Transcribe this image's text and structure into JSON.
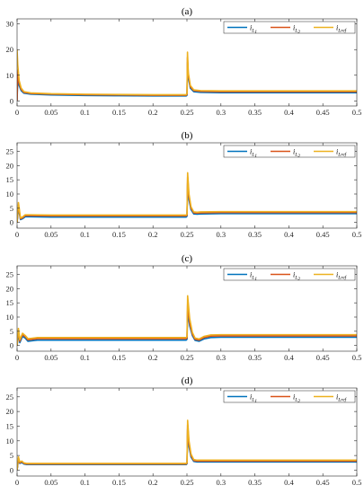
{
  "colors": {
    "i_L1": "#0072BD",
    "i_L2": "#D95319",
    "i_Lref": "#EDB120",
    "axes": "#262626",
    "background": "#ffffff"
  },
  "legend": {
    "placement": "top-right",
    "entries": [
      {
        "key": "i_L1",
        "base": "i",
        "sub": "L",
        "subsub": "1"
      },
      {
        "key": "i_L2",
        "base": "i",
        "sub": "L",
        "subsub": "2"
      },
      {
        "key": "i_Lref",
        "base": "i",
        "sub": "Lref",
        "subsub": ""
      }
    ]
  },
  "chart_data": [
    {
      "type": "line",
      "title": "(a)",
      "xlabel": "",
      "ylabel": "",
      "xlim": [
        0,
        0.5
      ],
      "ylim": [
        -2,
        32
      ],
      "xticks": [
        0,
        0.05,
        0.1,
        0.15,
        0.2,
        0.25,
        0.3,
        0.35,
        0.4,
        0.45,
        0.5
      ],
      "xtick_labels": [
        "0",
        "0.05",
        "0.1",
        "0.15",
        "0.2",
        "0.25",
        "0.3",
        "0.35",
        "0.4",
        "0.45",
        "0.5"
      ],
      "yticks": [
        0,
        10,
        20,
        30
      ],
      "ytick_labels": [
        "0",
        "10",
        "20",
        "30"
      ],
      "legend": "top-right",
      "series": [
        {
          "key": "i_L1",
          "x": [
            0,
            0.001,
            0.003,
            0.006,
            0.01,
            0.02,
            0.05,
            0.1,
            0.15,
            0.2,
            0.249,
            0.2501,
            0.2508,
            0.252,
            0.255,
            0.26,
            0.27,
            0.3,
            0.4,
            0.5
          ],
          "y": [
            0,
            9,
            6,
            4,
            3,
            2.6,
            2.3,
            2.1,
            2,
            1.9,
            1.9,
            2.2,
            15,
            9,
            5,
            3.6,
            3.3,
            3.2,
            3.2,
            3.2
          ]
        },
        {
          "key": "i_L2",
          "x": [
            0,
            0.001,
            0.003,
            0.006,
            0.01,
            0.02,
            0.05,
            0.1,
            0.15,
            0.2,
            0.249,
            0.2501,
            0.2508,
            0.252,
            0.255,
            0.26,
            0.27,
            0.3,
            0.4,
            0.5
          ],
          "y": [
            0,
            12,
            7,
            4.5,
            3.3,
            2.9,
            2.6,
            2.4,
            2.3,
            2.2,
            2.2,
            2.6,
            17,
            10,
            5.5,
            4,
            3.7,
            3.6,
            3.6,
            3.6
          ]
        },
        {
          "key": "i_Lref",
          "x": [
            0,
            0.001,
            0.003,
            0.006,
            0.01,
            0.02,
            0.05,
            0.1,
            0.15,
            0.2,
            0.249,
            0.2501,
            0.2508,
            0.252,
            0.255,
            0.26,
            0.27,
            0.3,
            0.4,
            0.5
          ],
          "y": [
            20,
            14,
            8,
            5,
            3.6,
            3.1,
            2.8,
            2.6,
            2.5,
            2.4,
            2.4,
            2.9,
            19,
            11,
            6,
            4.3,
            4,
            3.9,
            3.9,
            3.9
          ]
        }
      ]
    },
    {
      "type": "line",
      "title": "(b)",
      "xlabel": "",
      "ylabel": "",
      "xlim": [
        0,
        0.5
      ],
      "ylim": [
        -2,
        28
      ],
      "xticks": [
        0,
        0.05,
        0.1,
        0.15,
        0.2,
        0.25,
        0.3,
        0.35,
        0.4,
        0.45,
        0.5
      ],
      "xtick_labels": [
        "0",
        "0.05",
        "0.1",
        "0.15",
        "0.2",
        "0.25",
        "0.3",
        "0.35",
        "0.4",
        "0.45",
        "0.5"
      ],
      "yticks": [
        0,
        5,
        10,
        15,
        20,
        25
      ],
      "ytick_labels": [
        "0",
        "5",
        "10",
        "15",
        "20",
        "25"
      ],
      "legend": "top-right",
      "series": [
        {
          "key": "i_L1",
          "x": [
            0,
            0.002,
            0.005,
            0.008,
            0.012,
            0.02,
            0.05,
            0.1,
            0.2,
            0.249,
            0.2501,
            0.251,
            0.253,
            0.256,
            0.26,
            0.265,
            0.27,
            0.3,
            0.4,
            0.5
          ],
          "y": [
            0,
            5,
            1,
            1.3,
            2,
            2,
            1.9,
            1.9,
            1.9,
            1.9,
            2.2,
            14,
            8,
            4.5,
            3,
            2.9,
            3,
            3.1,
            3.1,
            3.1
          ]
        },
        {
          "key": "i_L2",
          "x": [
            0,
            0.002,
            0.005,
            0.008,
            0.012,
            0.02,
            0.05,
            0.1,
            0.2,
            0.249,
            0.2501,
            0.251,
            0.253,
            0.256,
            0.26,
            0.265,
            0.27,
            0.3,
            0.4,
            0.5
          ],
          "y": [
            0,
            6,
            1.3,
            1.6,
            2.4,
            2.4,
            2.3,
            2.3,
            2.3,
            2.3,
            2.6,
            16,
            9,
            5,
            3.4,
            3.3,
            3.4,
            3.5,
            3.5,
            3.5
          ]
        },
        {
          "key": "i_Lref",
          "x": [
            0,
            0.002,
            0.005,
            0.008,
            0.012,
            0.02,
            0.05,
            0.1,
            0.2,
            0.249,
            0.2501,
            0.251,
            0.253,
            0.256,
            0.26,
            0.265,
            0.27,
            0.3,
            0.4,
            0.5
          ],
          "y": [
            0,
            7,
            1.6,
            1.9,
            2.7,
            2.7,
            2.6,
            2.6,
            2.6,
            2.6,
            2.9,
            17.5,
            10,
            5.5,
            3.7,
            3.6,
            3.7,
            3.8,
            3.8,
            3.8
          ]
        }
      ]
    },
    {
      "type": "line",
      "title": "(c)",
      "xlabel": "",
      "ylabel": "",
      "xlim": [
        0,
        0.5
      ],
      "ylim": [
        -2,
        28
      ],
      "xticks": [
        0,
        0.05,
        0.1,
        0.15,
        0.2,
        0.25,
        0.3,
        0.35,
        0.4,
        0.45,
        0.5
      ],
      "xtick_labels": [
        "0",
        "0.05",
        "0.1",
        "0.15",
        "0.2",
        "0.25",
        "0.3",
        "0.35",
        "0.4",
        "0.45",
        "0.5"
      ],
      "yticks": [
        0,
        5,
        10,
        15,
        20,
        25
      ],
      "ytick_labels": [
        "0",
        "5",
        "10",
        "15",
        "20",
        "25"
      ],
      "legend": "top-right",
      "series": [
        {
          "key": "i_L1",
          "x": [
            0,
            0.002,
            0.004,
            0.008,
            0.012,
            0.016,
            0.02,
            0.03,
            0.05,
            0.1,
            0.2,
            0.249,
            0.2501,
            0.251,
            0.254,
            0.258,
            0.262,
            0.268,
            0.275,
            0.285,
            0.3,
            0.4,
            0.5
          ],
          "y": [
            0,
            4,
            1,
            3.2,
            2.6,
            1.5,
            1.6,
            1.9,
            1.9,
            1.9,
            1.9,
            1.9,
            2.2,
            12,
            7,
            3.5,
            1.8,
            1.5,
            2.3,
            2.8,
            2.9,
            2.9,
            2.9
          ]
        },
        {
          "key": "i_L2",
          "x": [
            0,
            0.002,
            0.004,
            0.008,
            0.012,
            0.016,
            0.02,
            0.03,
            0.05,
            0.1,
            0.2,
            0.249,
            0.2501,
            0.251,
            0.254,
            0.258,
            0.262,
            0.268,
            0.275,
            0.285,
            0.3,
            0.4,
            0.5
          ],
          "y": [
            0,
            5,
            1.5,
            3.8,
            3.1,
            2,
            2.1,
            2.4,
            2.4,
            2.4,
            2.4,
            2.4,
            2.7,
            14.5,
            8,
            4,
            2.2,
            1.9,
            2.8,
            3.3,
            3.4,
            3.4,
            3.4
          ]
        },
        {
          "key": "i_Lref",
          "x": [
            0,
            0.002,
            0.004,
            0.008,
            0.012,
            0.016,
            0.02,
            0.03,
            0.05,
            0.1,
            0.2,
            0.249,
            0.2501,
            0.251,
            0.254,
            0.258,
            0.262,
            0.268,
            0.275,
            0.285,
            0.3,
            0.4,
            0.5
          ],
          "y": [
            0,
            6,
            2,
            4.3,
            3.5,
            2.4,
            2.5,
            2.8,
            2.8,
            2.8,
            2.8,
            2.8,
            3.1,
            17.5,
            9.5,
            4.6,
            2.6,
            2.3,
            3.2,
            3.7,
            3.8,
            3.8,
            3.8
          ]
        }
      ]
    },
    {
      "type": "line",
      "title": "(d)",
      "xlabel": "",
      "ylabel": "",
      "xlim": [
        0,
        0.5
      ],
      "ylim": [
        -2,
        28
      ],
      "xticks": [
        0,
        0.05,
        0.1,
        0.15,
        0.2,
        0.25,
        0.3,
        0.35,
        0.4,
        0.45,
        0.5
      ],
      "xtick_labels": [
        "0",
        "0.05",
        "0.1",
        "0.15",
        "0.2",
        "0.25",
        "0.3",
        "0.35",
        "0.4",
        "0.45",
        "0.5"
      ],
      "yticks": [
        0,
        5,
        10,
        15,
        20,
        25
      ],
      "ytick_labels": [
        "0",
        "5",
        "10",
        "15",
        "20",
        "25"
      ],
      "legend": "top-right",
      "series": [
        {
          "key": "i_L1",
          "x": [
            0,
            0.002,
            0.004,
            0.007,
            0.01,
            0.014,
            0.02,
            0.05,
            0.1,
            0.2,
            0.249,
            0.2501,
            0.251,
            0.253,
            0.256,
            0.26,
            0.265,
            0.27,
            0.3,
            0.4,
            0.5
          ],
          "y": [
            0,
            3.5,
            2.3,
            2.6,
            2.1,
            1.9,
            1.9,
            1.9,
            1.9,
            1.9,
            1.9,
            2.2,
            14,
            8,
            4.5,
            3,
            2.8,
            2.8,
            2.8,
            2.8,
            2.8
          ]
        },
        {
          "key": "i_L2",
          "x": [
            0,
            0.002,
            0.004,
            0.007,
            0.01,
            0.014,
            0.02,
            0.05,
            0.1,
            0.2,
            0.249,
            0.2501,
            0.251,
            0.253,
            0.256,
            0.26,
            0.265,
            0.27,
            0.3,
            0.4,
            0.5
          ],
          "y": [
            0,
            4,
            2.5,
            2.9,
            2.3,
            2.1,
            2.1,
            2.1,
            2.1,
            2.1,
            2.1,
            2.4,
            15.5,
            9,
            5,
            3.3,
            3.1,
            3.1,
            3.1,
            3.1,
            3.1
          ]
        },
        {
          "key": "i_Lref",
          "x": [
            0,
            0.002,
            0.004,
            0.007,
            0.01,
            0.014,
            0.02,
            0.05,
            0.1,
            0.2,
            0.249,
            0.2501,
            0.251,
            0.253,
            0.256,
            0.26,
            0.265,
            0.27,
            0.3,
            0.4,
            0.5
          ],
          "y": [
            0,
            4.5,
            2.8,
            3.1,
            2.5,
            2.3,
            2.3,
            2.3,
            2.3,
            2.3,
            2.3,
            2.6,
            17,
            10,
            5.5,
            3.6,
            3.4,
            3.4,
            3.4,
            3.4,
            3.4
          ]
        }
      ]
    }
  ]
}
